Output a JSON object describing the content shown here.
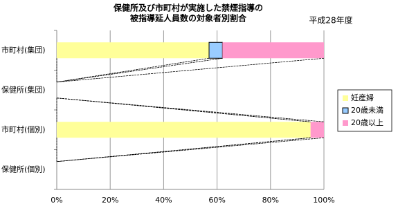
{
  "chart_data": {
    "type": "bar",
    "title": [
      "保健所及び市町村が実施した禁煙指導の",
      "被指導延人員数の対象者別割合"
    ],
    "subtitle": "平成28年度",
    "categories": [
      "市町村(集団)",
      "保健所(集団)",
      "市町村(個別)",
      "保健所(個別)"
    ],
    "series": [
      {
        "name": "妊産婦",
        "color": "#ffff99",
        "values": [
          57,
          0,
          95,
          0
        ]
      },
      {
        "name": "20歳未満",
        "color": "#99ccff",
        "values": [
          5,
          0,
          0,
          0
        ]
      },
      {
        "name": "20歳以上",
        "color": "#ff99cc",
        "values": [
          38,
          0,
          5,
          0
        ]
      }
    ],
    "xlim": [
      0,
      100
    ],
    "xticks": [
      {
        "value": 0,
        "label": "0%"
      },
      {
        "value": 20,
        "label": "20%"
      },
      {
        "value": 40,
        "label": "40%"
      },
      {
        "value": 60,
        "label": "60%"
      },
      {
        "value": 80,
        "label": "80%"
      },
      {
        "value": 100,
        "label": "100%"
      }
    ],
    "grid": true
  }
}
